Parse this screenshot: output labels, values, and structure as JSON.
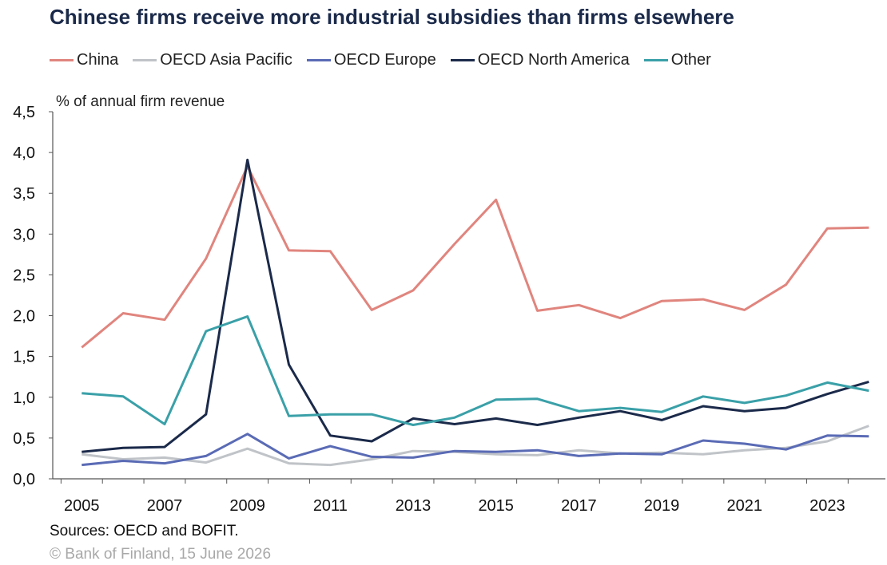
{
  "title": "Chinese firms receive more industrial subsidies than firms elsewhere",
  "sources": "Sources: OECD and BOFIT.",
  "copyright": "© Bank of Finland, 15 June 2026",
  "chart_data": {
    "type": "line",
    "ylabel": "% of annual firm revenue",
    "ylim": [
      0,
      4.5
    ],
    "yticks": [
      "0,0",
      "0,5",
      "1,0",
      "1,5",
      "2,0",
      "2,5",
      "3,0",
      "3,5",
      "4,0",
      "4,5"
    ],
    "x": [
      2005,
      2006,
      2007,
      2008,
      2009,
      2010,
      2011,
      2012,
      2013,
      2014,
      2015,
      2016,
      2017,
      2018,
      2019,
      2020,
      2021,
      2022,
      2023,
      2024
    ],
    "xticks": [
      "2005",
      "2007",
      "2009",
      "2011",
      "2013",
      "2015",
      "2017",
      "2019",
      "2021",
      "2023"
    ],
    "grid": false,
    "legend_position": "top",
    "series": [
      {
        "name": "China",
        "color": "#e0857e",
        "values": [
          1.61,
          2.03,
          1.95,
          2.7,
          3.83,
          2.8,
          2.79,
          2.07,
          2.31,
          2.88,
          3.42,
          2.06,
          2.13,
          1.97,
          2.18,
          2.2,
          2.07,
          2.38,
          3.07,
          3.08
        ]
      },
      {
        "name": "OECD Asia Pacific",
        "color": "#c0c4c8",
        "values": [
          0.3,
          0.24,
          0.26,
          0.2,
          0.37,
          0.19,
          0.17,
          0.24,
          0.34,
          0.33,
          0.3,
          0.29,
          0.35,
          0.31,
          0.32,
          0.3,
          0.35,
          0.38,
          0.46,
          0.65
        ]
      },
      {
        "name": "OECD Europe",
        "color": "#5a6bb5",
        "values": [
          0.17,
          0.22,
          0.19,
          0.28,
          0.55,
          0.25,
          0.4,
          0.27,
          0.26,
          0.34,
          0.33,
          0.35,
          0.28,
          0.31,
          0.3,
          0.47,
          0.43,
          0.36,
          0.53,
          0.52
        ]
      },
      {
        "name": "OECD North America",
        "color": "#1b2a4a",
        "values": [
          0.33,
          0.38,
          0.39,
          0.79,
          3.91,
          1.4,
          0.53,
          0.46,
          0.74,
          0.67,
          0.74,
          0.66,
          0.75,
          0.83,
          0.72,
          0.89,
          0.83,
          0.87,
          1.04,
          1.19
        ]
      },
      {
        "name": "Other",
        "color": "#3aa0a8",
        "values": [
          1.05,
          1.01,
          0.67,
          1.81,
          1.99,
          0.77,
          0.79,
          0.79,
          0.66,
          0.75,
          0.97,
          0.98,
          0.83,
          0.87,
          0.82,
          1.01,
          0.93,
          1.02,
          1.18,
          1.08
        ]
      }
    ]
  }
}
